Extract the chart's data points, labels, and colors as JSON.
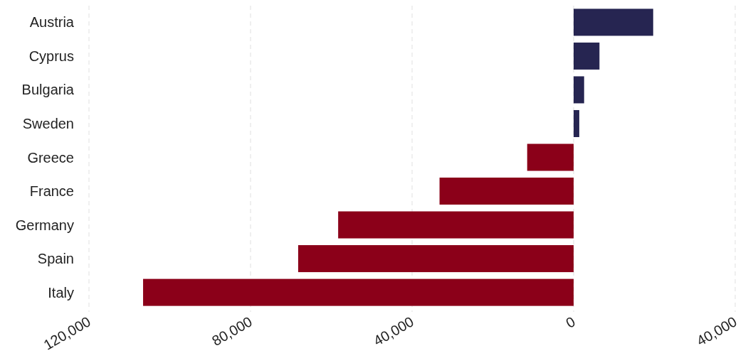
{
  "chart_data": {
    "type": "bar",
    "orientation": "horizontal",
    "categories": [
      "Austria",
      "Cyprus",
      "Bulgaria",
      "Sweden",
      "Greece",
      "France",
      "Germany",
      "Spain",
      "Italy"
    ],
    "values": [
      19700,
      6400,
      2600,
      1400,
      -11500,
      -33200,
      -58300,
      -68200,
      -106600
    ],
    "colors": [
      "#262551",
      "#262551",
      "#262551",
      "#262551",
      "#8b0019",
      "#8b0019",
      "#8b0019",
      "#8b0019",
      "#8b0019"
    ],
    "xlim": [
      -120000,
      40000
    ],
    "xticks": [
      {
        "value": -120000,
        "label": "120,000"
      },
      {
        "value": -80000,
        "label": "80,000"
      },
      {
        "value": -40000,
        "label": "40,000"
      },
      0,
      {
        "value": 40000,
        "label": "40,000"
      }
    ],
    "grid": "x"
  }
}
